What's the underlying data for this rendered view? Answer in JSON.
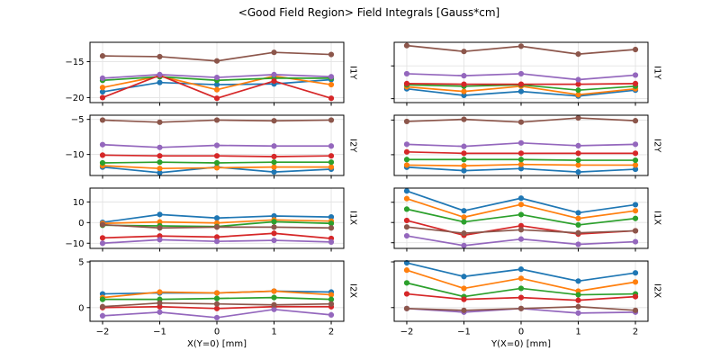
{
  "chart_data": {
    "type": "line",
    "title": "<Good Field Region> Field Integrals [Gauss*cm]",
    "x": [
      -2,
      -1,
      0,
      1,
      2
    ],
    "xlim": [
      -2.22,
      2.22
    ],
    "xticks": [
      -2,
      -1,
      0,
      1,
      2
    ],
    "grid": true,
    "legend": "none",
    "marker": "circle",
    "series_colors": [
      "#1f77b4",
      "#ff7f0e",
      "#2ca02c",
      "#d62728",
      "#9467bd",
      "#8c564b"
    ],
    "columns": [
      {
        "xlabel": "X(Y=0) [mm]"
      },
      {
        "xlabel": "Y(X=0) [mm]"
      }
    ],
    "rows": [
      {
        "label": "I1Y"
      },
      {
        "label": "I2Y"
      },
      {
        "label": "I1X"
      },
      {
        "label": "I2X"
      }
    ],
    "panels": [
      {
        "row": 0,
        "col": 0,
        "row_label": "I1Y",
        "ylim": [
          -20.7,
          -12.3
        ],
        "yticks": [
          -15,
          -20
        ],
        "show_ytick_labels": true,
        "series": [
          [
            -19.2,
            -17.9,
            -18.2,
            -18.1,
            -17.5
          ],
          [
            -18.6,
            -17.0,
            -18.9,
            -17.0,
            -18.2
          ],
          [
            -17.6,
            -17.1,
            -17.6,
            -17.3,
            -17.3
          ],
          [
            -20.0,
            -16.9,
            -20.1,
            -17.7,
            -20.1
          ],
          [
            -17.3,
            -16.8,
            -17.2,
            -16.8,
            -17.1
          ],
          [
            -14.2,
            -14.3,
            -14.9,
            -13.7,
            -14.0
          ]
        ]
      },
      {
        "row": 0,
        "col": 1,
        "row_label": "I1Y",
        "ylim": [
          -20.6,
          -11.4
        ],
        "yticks": [
          -15,
          -20
        ],
        "show_ytick_labels": false,
        "series": [
          [
            -18.5,
            -19.5,
            -18.9,
            -19.6,
            -18.7
          ],
          [
            -18.2,
            -18.9,
            -18.1,
            -19.4,
            -18.5
          ],
          [
            -17.9,
            -18.1,
            -17.9,
            -18.7,
            -18.1
          ],
          [
            -17.7,
            -17.8,
            -17.8,
            -17.8,
            -17.7
          ],
          [
            -16.2,
            -16.5,
            -16.2,
            -17.1,
            -16.4
          ],
          [
            -11.9,
            -12.8,
            -12.0,
            -13.2,
            -12.5
          ]
        ]
      },
      {
        "row": 1,
        "col": 0,
        "row_label": "I2Y",
        "ylim": [
          -13.0,
          -4.4
        ],
        "yticks": [
          -5,
          -10
        ],
        "show_ytick_labels": true,
        "series": [
          [
            -11.8,
            -12.6,
            -11.8,
            -12.5,
            -12.1
          ],
          [
            -11.6,
            -12.0,
            -11.9,
            -11.8,
            -11.8
          ],
          [
            -11.2,
            -11.1,
            -11.2,
            -11.1,
            -11.1
          ],
          [
            -10.1,
            -10.2,
            -10.2,
            -10.3,
            -10.2
          ],
          [
            -8.6,
            -9.0,
            -8.7,
            -8.8,
            -8.8
          ],
          [
            -5.1,
            -5.4,
            -5.1,
            -5.2,
            -5.1
          ]
        ]
      },
      {
        "row": 1,
        "col": 1,
        "row_label": "I2Y",
        "ylim": [
          -13.0,
          -4.3
        ],
        "yticks": [
          -5,
          -10
        ],
        "show_ytick_labels": false,
        "series": [
          [
            -11.8,
            -12.3,
            -12.0,
            -12.5,
            -12.1
          ],
          [
            -11.5,
            -11.6,
            -11.4,
            -11.5,
            -11.5
          ],
          [
            -10.7,
            -10.7,
            -10.7,
            -10.8,
            -10.8
          ],
          [
            -9.6,
            -9.8,
            -9.8,
            -9.8,
            -9.8
          ],
          [
            -8.5,
            -8.8,
            -8.3,
            -8.7,
            -8.5
          ],
          [
            -5.2,
            -4.9,
            -5.3,
            -4.7,
            -5.1
          ]
        ]
      },
      {
        "row": 2,
        "col": 0,
        "row_label": "I1X",
        "ylim": [
          -12.5,
          16.7
        ],
        "yticks": [
          10,
          0,
          -10
        ],
        "show_ytick_labels": true,
        "series": [
          [
            0.1,
            3.9,
            2.2,
            3.2,
            2.7
          ],
          [
            -0.4,
            0.3,
            -0.2,
            1.3,
            0.7
          ],
          [
            -1.3,
            -1.6,
            -1.9,
            0.4,
            -0.4
          ],
          [
            -7.4,
            -6.5,
            -7.0,
            -5.2,
            -7.7
          ],
          [
            -10.0,
            -8.3,
            -9.1,
            -8.6,
            -9.4
          ],
          [
            -1.0,
            -2.6,
            -2.2,
            -2.2,
            -2.6
          ]
        ]
      },
      {
        "row": 2,
        "col": 1,
        "row_label": "I1X",
        "ylim": [
          -12.8,
          17.0
        ],
        "yticks": [
          10,
          0,
          -10
        ],
        "show_ytick_labels": false,
        "series": [
          [
            15.6,
            5.8,
            12.0,
            4.8,
            8.8
          ],
          [
            11.8,
            2.6,
            8.9,
            2.0,
            5.8
          ],
          [
            6.6,
            0.3,
            3.9,
            -1.2,
            2.0
          ],
          [
            1.0,
            -6.3,
            -1.6,
            -5.7,
            -4.1
          ],
          [
            -6.6,
            -11.4,
            -8.2,
            -10.8,
            -9.5
          ],
          [
            -2.2,
            -5.3,
            -3.6,
            -5.1,
            -4.1
          ]
        ]
      },
      {
        "row": 3,
        "col": 0,
        "row_label": "I2X",
        "ylim": [
          -1.5,
          5.1
        ],
        "yticks": [
          5,
          0
        ],
        "show_ytick_labels": true,
        "series": [
          [
            1.5,
            1.6,
            1.6,
            1.8,
            1.7
          ],
          [
            1.1,
            1.7,
            1.6,
            1.8,
            1.4
          ],
          [
            0.9,
            0.9,
            1.0,
            1.1,
            0.9
          ],
          [
            0.0,
            0.1,
            -0.1,
            0.1,
            0.1
          ],
          [
            -0.9,
            -0.5,
            -1.1,
            -0.2,
            -0.8
          ],
          [
            0.1,
            0.5,
            0.4,
            0.3,
            0.4
          ]
        ]
      },
      {
        "row": 3,
        "col": 1,
        "row_label": "I2X",
        "ylim": [
          -1.5,
          5.1
        ],
        "yticks": [
          5,
          0
        ],
        "show_ytick_labels": false,
        "series": [
          [
            4.9,
            3.4,
            4.2,
            2.9,
            3.8
          ],
          [
            4.1,
            2.1,
            3.2,
            1.8,
            2.8
          ],
          [
            2.7,
            1.2,
            2.1,
            1.4,
            1.5
          ],
          [
            1.5,
            0.9,
            1.1,
            0.8,
            1.2
          ],
          [
            -0.1,
            -0.5,
            -0.1,
            -0.6,
            -0.5
          ],
          [
            -0.1,
            -0.3,
            -0.1,
            0.1,
            -0.3
          ]
        ]
      }
    ],
    "style": {
      "grid_color": "#e3e3e3",
      "spine_color": "#000000",
      "text_color": "#000000",
      "background": "#ffffff"
    }
  }
}
